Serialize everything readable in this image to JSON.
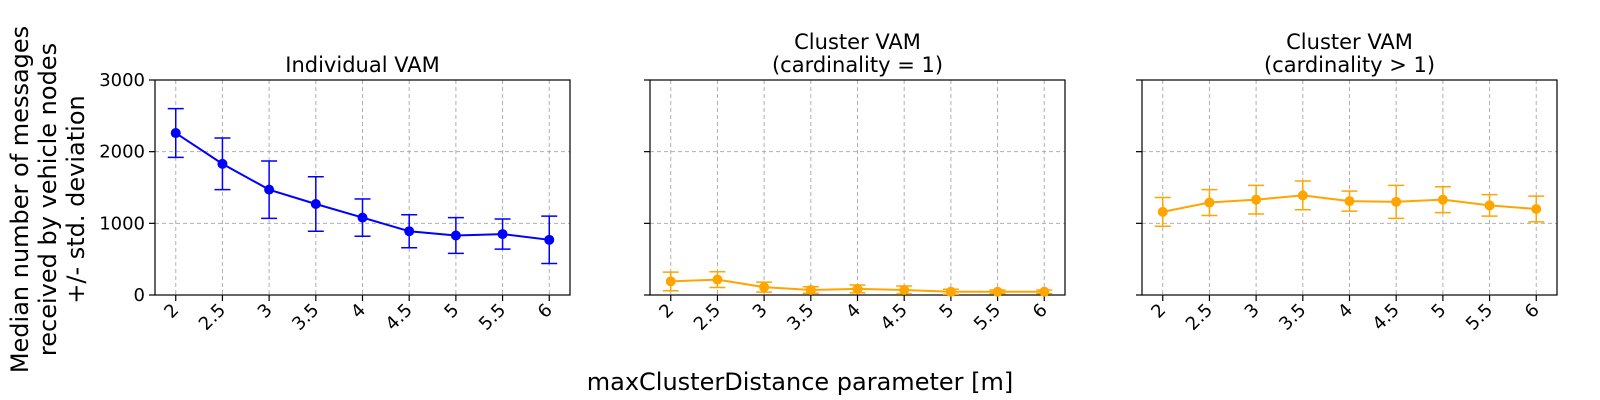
{
  "chart_data": {
    "type": "line",
    "error_bars": true,
    "sharey": true,
    "xlabel": "maxClusterDistance parameter [m]",
    "ylabel_lines": [
      "Median number of messages",
      "received by vehicle nodes",
      "+/- std. deviation"
    ],
    "categories": [
      "2",
      "2.5",
      "3",
      "3.5",
      "4",
      "4.5",
      "5",
      "5.5",
      "6"
    ],
    "ylim": [
      0,
      3000
    ],
    "yticks": [
      "0",
      "1000",
      "2000",
      "3000"
    ],
    "grid": true,
    "panels": [
      {
        "title_lines": [
          "Individual VAM"
        ],
        "color": "#0000ff",
        "values": [
          2260,
          1830,
          1470,
          1270,
          1080,
          890,
          830,
          850,
          770
        ],
        "errors": [
          340,
          360,
          400,
          380,
          260,
          230,
          250,
          210,
          330
        ]
      },
      {
        "title_lines": [
          "Cluster VAM",
          "(cardinality = 1)"
        ],
        "color": "#ffa500",
        "values": [
          190,
          215,
          110,
          70,
          85,
          70,
          45,
          45,
          45
        ],
        "errors": [
          130,
          110,
          70,
          45,
          55,
          55,
          35,
          25,
          25
        ]
      },
      {
        "title_lines": [
          "Cluster VAM",
          "(cardinality > 1)"
        ],
        "color": "#ffa500",
        "values": [
          1160,
          1290,
          1330,
          1390,
          1310,
          1300,
          1330,
          1250,
          1200
        ],
        "errors": [
          200,
          180,
          200,
          200,
          140,
          230,
          180,
          150,
          180
        ]
      }
    ]
  }
}
